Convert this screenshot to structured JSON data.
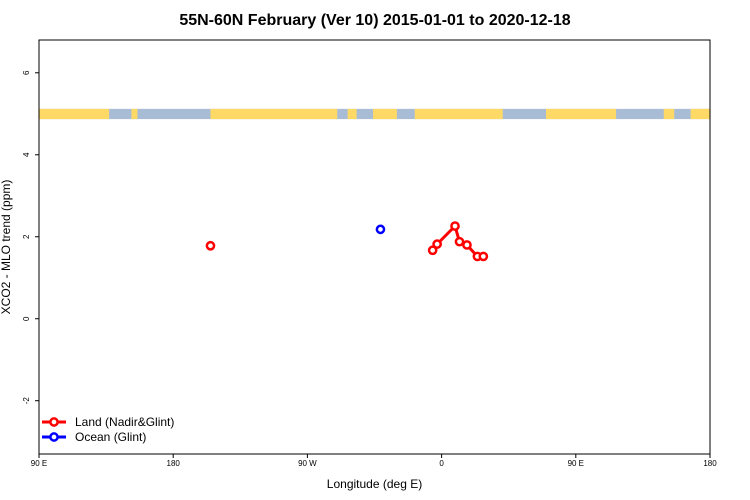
{
  "chart_data": {
    "type": "scatter",
    "title": "55N-60N February (Ver 10)   2015-01-01 to 2020-12-18",
    "xlabel": "Longitude (deg E)",
    "ylabel": "XCO2 - MLO trend (ppm)",
    "xlim": [
      90,
      540
    ],
    "ylim": [
      -3.3,
      6.8
    ],
    "x_ticks": [
      {
        "value": 90,
        "label": "90 E"
      },
      {
        "value": 180,
        "label": "180"
      },
      {
        "value": 270,
        "label": "90 W"
      },
      {
        "value": 360,
        "label": "0"
      },
      {
        "value": 450,
        "label": "90 E"
      },
      {
        "value": 540,
        "label": "180"
      }
    ],
    "y_ticks": [
      -2,
      0,
      2,
      4,
      6
    ],
    "grid": false,
    "legend_position": "bottom-left",
    "series": [
      {
        "name": "Land (Nadir&Glint)",
        "color": "#ff0000",
        "points": [
          {
            "x": 205,
            "y": 1.78
          },
          {
            "x": 354,
            "y": 1.67
          },
          {
            "x": 357,
            "y": 1.82
          },
          {
            "x": 369,
            "y": 2.26
          },
          {
            "x": 372,
            "y": 1.88
          },
          {
            "x": 377,
            "y": 1.8
          },
          {
            "x": 384,
            "y": 1.52
          },
          {
            "x": 388,
            "y": 1.52
          }
        ],
        "connected_segments": [
          [
            2,
            4
          ],
          [
            5,
            7
          ]
        ]
      },
      {
        "name": "Ocean (Glint)",
        "color": "#0000ff",
        "points": [
          {
            "x": 319,
            "y": 2.18
          }
        ],
        "connected_segments": []
      }
    ],
    "land_ocean_strip": {
      "y_range": [
        4.87,
        5.12
      ],
      "land_color": "#ffd966",
      "ocean_color": "#a9bcd6",
      "land_spans": [
        [
          90,
          137
        ],
        [
          152,
          156
        ],
        [
          205,
          290
        ],
        [
          297,
          303
        ],
        [
          314,
          330
        ],
        [
          342,
          401
        ],
        [
          430,
          477
        ],
        [
          509,
          516
        ],
        [
          527,
          540
        ]
      ]
    }
  }
}
